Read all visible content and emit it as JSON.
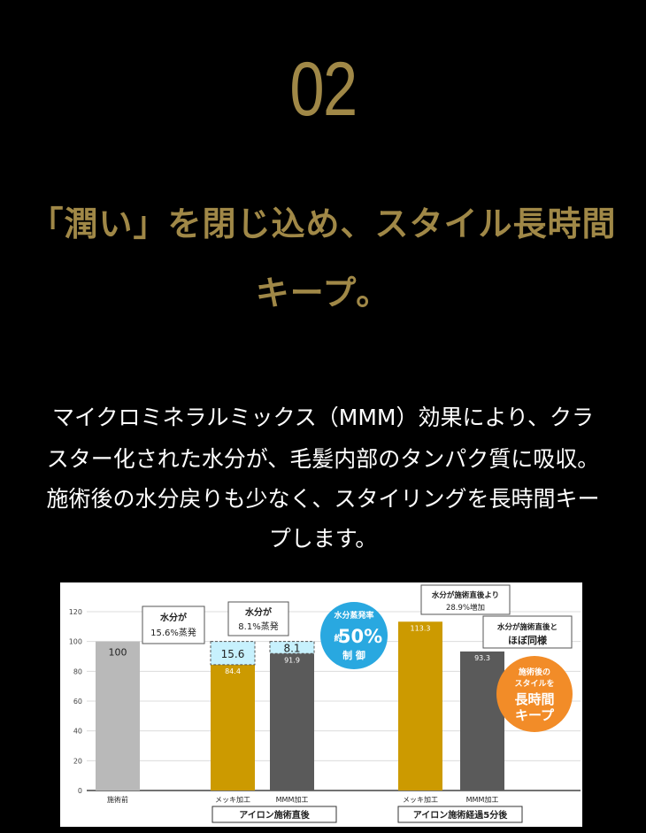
{
  "section_number": "02",
  "headline": [
    "「潤い」を閉じ込め、スタイル長時間",
    "キープ。"
  ],
  "description": [
    "マイクロミネラルミックス（MMM）効果により、クラ",
    "スター化された水分が、毛髪内部のタンパク質に吸収。",
    "施術後の水分戻りも少なく、スタイリングを長時間キー",
    "プします。"
  ],
  "chart_data": {
    "type": "bar",
    "ylim": [
      0,
      120
    ],
    "yticks": [
      0,
      20,
      40,
      60,
      80,
      100,
      120
    ],
    "grid": true,
    "categories": [
      "施術前",
      "メッキ加工",
      "MMM加工",
      "メッキ加工",
      "MMM加工"
    ],
    "values": [
      100,
      84.4,
      91.9,
      113.3,
      93.3
    ],
    "value_labels": [
      "100",
      "84.4",
      "91.9",
      "113.3",
      "93.3"
    ],
    "evaporation": [
      null,
      15.6,
      8.1,
      null,
      null
    ],
    "evaporation_labels": [
      "",
      "15.6",
      "8.1",
      "",
      ""
    ],
    "groups": [
      "アイロン施術直後",
      "アイロン施術経過5分後"
    ],
    "colors": {
      "before": "#b9b9b9",
      "gold": "#cc9a00",
      "gray": "#5a5a5a",
      "evap_fill": "#c7f1fd",
      "blue_badge": "#29a8e0",
      "orange_badge": "#f28c28"
    },
    "callouts": {
      "mekki_evap": [
        "水分が",
        "15.6%蒸発"
      ],
      "mmm_evap": [
        "水分が",
        "8.1%蒸発"
      ],
      "increase": [
        "水分が施術直後より",
        "28.9%増加"
      ],
      "same": [
        "水分が施術直後と",
        "ほぼ同様"
      ]
    },
    "blue_badge": {
      "line1": "水分蒸発率",
      "prefix": "約",
      "value": "50%",
      "line3": "制 御"
    },
    "orange_badge": [
      "施術後の",
      "スタイルを",
      "長時間",
      "キープ"
    ]
  }
}
